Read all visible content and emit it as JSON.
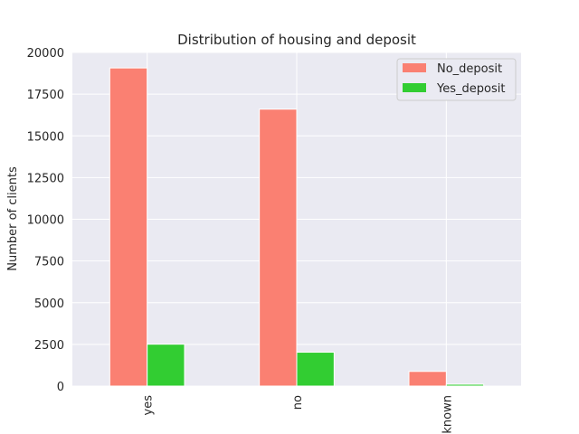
{
  "chart_data": {
    "type": "bar",
    "title": "Distribution of housing and deposit",
    "xlabel": "",
    "ylabel": "Number of clients",
    "categories": [
      "yes",
      "no",
      "unknown"
    ],
    "series": [
      {
        "name": "No_deposit",
        "color": "#fa8072",
        "values": [
          19070,
          16600,
          880
        ]
      },
      {
        "name": "Yes_deposit",
        "color": "#32cd32",
        "values": [
          2510,
          2030,
          110
        ]
      }
    ],
    "ylim": [
      0,
      20000
    ],
    "yticks": [
      0,
      2500,
      5000,
      7500,
      10000,
      12500,
      15000,
      17500,
      20000
    ],
    "grid": true,
    "legend_position": "top-right",
    "background": "#eaeaf2"
  }
}
